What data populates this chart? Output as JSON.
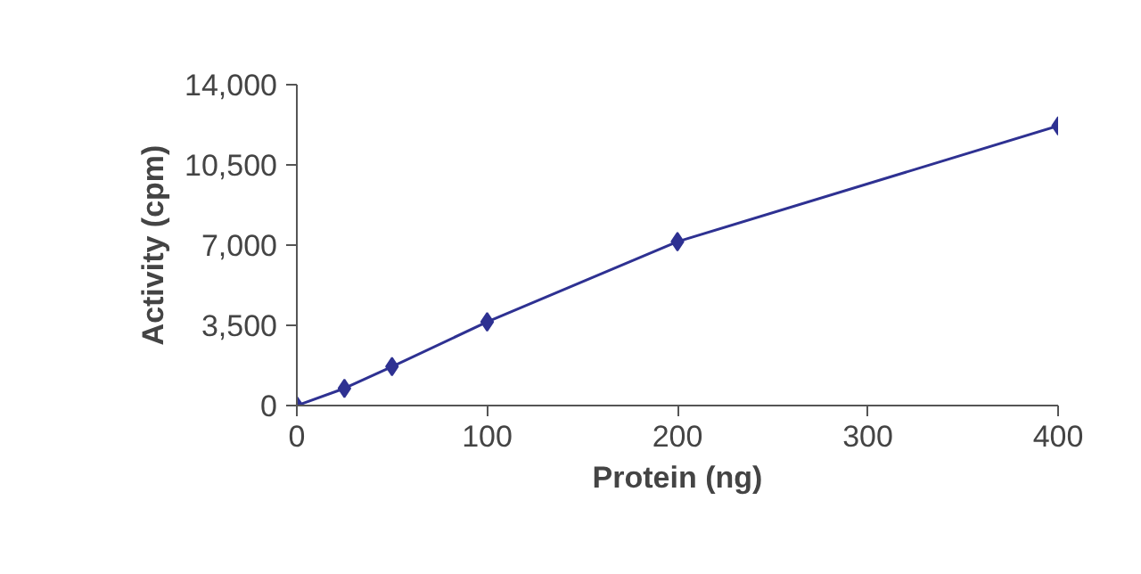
{
  "chart_data": {
    "type": "line",
    "xlabel": "Protein (ng)",
    "ylabel": "Activity (cpm)",
    "x": [
      0,
      25,
      50,
      100,
      200,
      400
    ],
    "series": [
      {
        "color": "#2e3192",
        "values": [
          0,
          750,
          1700,
          3650,
          7150,
          12200
        ]
      }
    ],
    "xlim": [
      0,
      400
    ],
    "xticks": [
      0,
      100,
      200,
      300,
      400
    ],
    "ylim": [
      0,
      14000
    ],
    "yticks": [
      0,
      {
        "value": 3500,
        "label": "3,500"
      },
      {
        "value": 7000,
        "label": "7,000"
      },
      {
        "value": 10500,
        "label": "10,500"
      },
      {
        "value": 14000,
        "label": "14,000"
      }
    ],
    "grid": false,
    "marker": "diamond",
    "line_style": "solid"
  }
}
